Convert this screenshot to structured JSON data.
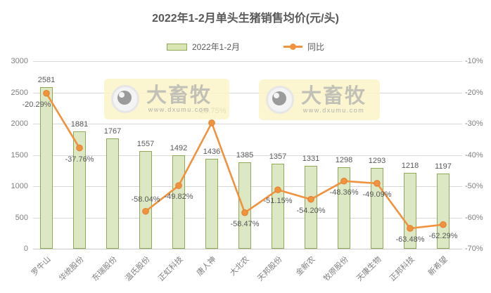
{
  "title": "2022年1-2月单头生猪销售均价(元/头)",
  "legend": {
    "bar": "2022年1-2月",
    "line": "同比"
  },
  "watermark": {
    "brand": "大畜牧",
    "url": "www.dxumu.com"
  },
  "colors": {
    "bar_fill": "#dce8c3",
    "bar_border": "#8fa958",
    "line": "#f0923e",
    "grid": "#d9d9d9",
    "label_text": "#595959",
    "axis_text": "#7f7f7f",
    "watermark_bg": "#faf4cb"
  },
  "chart_data": {
    "type": "bar",
    "title": "2022年1-2月单头生猪销售均价(元/头)",
    "categories": [
      "罗牛山",
      "华统股份",
      "东瑞股份",
      "温氏股份",
      "正虹科技",
      "唐人神",
      "大北农",
      "天邦股份",
      "金新农",
      "牧原股份",
      "天康生物",
      "正邦科技",
      "新希望"
    ],
    "series": [
      {
        "name": "2022年1-2月",
        "type": "bar",
        "axis": "left",
        "values": [
          2581,
          1881,
          1767,
          1557,
          1492,
          1436,
          1385,
          1357,
          1331,
          1298,
          1293,
          1218,
          1197
        ]
      },
      {
        "name": "同比",
        "type": "line",
        "axis": "right",
        "values": [
          -20.29,
          -37.76,
          null,
          -58.04,
          -49.82,
          -29.75,
          -58.47,
          -51.15,
          -54.2,
          -48.36,
          -49.09,
          -63.48,
          -62.29
        ],
        "labels": [
          "-20.29%",
          "-37.76%",
          null,
          "-58.04%",
          "-49.82%",
          "-29.75%",
          "-58.47%",
          "-51.15%",
          "-54.20%",
          "-48.36%",
          "-49.09%",
          "-63.48%",
          "-62.29%"
        ]
      }
    ],
    "left_axis": {
      "min": 0,
      "max": 3000,
      "ticks": [
        "3000",
        "2500",
        "2000",
        "1500",
        "1000",
        "500",
        "0"
      ]
    },
    "right_axis": {
      "min": -70,
      "max": -10,
      "ticks": [
        "-10%",
        "-20%",
        "-30%",
        "-40%",
        "-50%",
        "-60%",
        "-70%"
      ]
    },
    "grid": true,
    "legend_position": "top"
  }
}
